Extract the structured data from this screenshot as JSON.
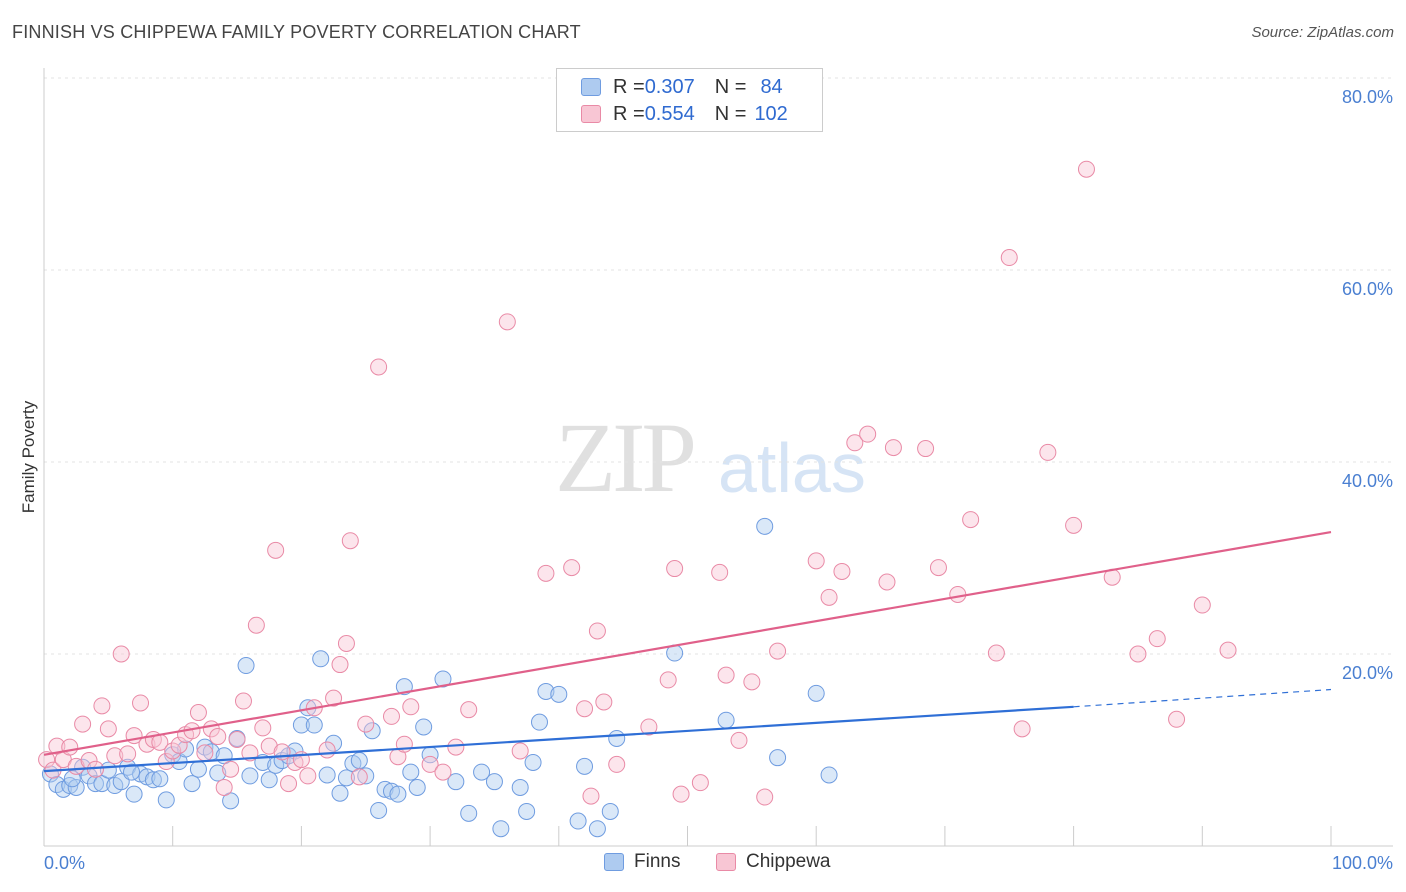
{
  "title": "FINNISH VS CHIPPEWA FAMILY POVERTY CORRELATION CHART",
  "source": "Source: ZipAtlas.com",
  "watermark": {
    "zip": "ZIP",
    "atlas": "atlas"
  },
  "legend": {
    "rows": [
      {
        "r_label": "R = ",
        "r_value": "0.307",
        "n_label": "N = ",
        "n_value": "84",
        "color": "#aecbf0",
        "border": "#6f9ce0"
      },
      {
        "r_label": "R = ",
        "r_value": "0.554",
        "n_label": "N = ",
        "n_value": "102",
        "color": "#f8c6d4",
        "border": "#e98aa6"
      }
    ],
    "bottom": [
      {
        "label": "Finns",
        "color": "#aecbf0",
        "border": "#6f9ce0"
      },
      {
        "label": "Chippewa",
        "color": "#f8c6d4",
        "border": "#e98aa6"
      }
    ]
  },
  "chart_data": {
    "type": "scatter",
    "title": "FINNISH VS CHIPPEWA FAMILY POVERTY CORRELATION CHART",
    "xlabel": "",
    "ylabel": "Family Poverty",
    "xlim": [
      0,
      100
    ],
    "ylim": [
      0,
      80
    ],
    "x_tick_labels": [
      "0.0%",
      "100.0%"
    ],
    "y_tick_labels": [
      "20.0%",
      "40.0%",
      "60.0%",
      "80.0%"
    ],
    "y_ticks": [
      20,
      40,
      60,
      80
    ],
    "grid": true,
    "legend_position": "top-center",
    "series": [
      {
        "name": "Finns",
        "color": "#6f9ce0",
        "fill": "rgba(174,203,240,0.45)",
        "trend": {
          "x0": 0,
          "y0": 7.8,
          "x1": 80,
          "y1": 14.5,
          "dash_x1": 100,
          "dash_y1": 16.3,
          "color": "#2f6fd6"
        },
        "points": [
          [
            0.5,
            7.5
          ],
          [
            1.0,
            6.4
          ],
          [
            1.5,
            5.9
          ],
          [
            2.0,
            6.3
          ],
          [
            2.5,
            6.1
          ],
          [
            3.0,
            8.2
          ],
          [
            3.5,
            7.3
          ],
          [
            4.0,
            6.5
          ],
          [
            4.5,
            6.5
          ],
          [
            5.0,
            7.9
          ],
          [
            5.5,
            6.3
          ],
          [
            6.0,
            6.7
          ],
          [
            6.5,
            8.2
          ],
          [
            7.0,
            5.4
          ],
          [
            7.5,
            7.5
          ],
          [
            8.0,
            7.2
          ],
          [
            8.5,
            6.9
          ],
          [
            9.0,
            7.0
          ],
          [
            9.5,
            4.8
          ],
          [
            10.0,
            9.5
          ],
          [
            10.5,
            8.8
          ],
          [
            11.0,
            10.1
          ],
          [
            11.5,
            6.5
          ],
          [
            12.0,
            8.0
          ],
          [
            12.5,
            10.3
          ],
          [
            13.0,
            9.8
          ],
          [
            13.5,
            7.6
          ],
          [
            14.0,
            9.4
          ],
          [
            14.5,
            4.7
          ],
          [
            15.0,
            11.2
          ],
          [
            15.7,
            18.8
          ],
          [
            16.0,
            7.3
          ],
          [
            17.0,
            8.7
          ],
          [
            17.5,
            6.9
          ],
          [
            18.0,
            8.4
          ],
          [
            18.5,
            8.9
          ],
          [
            19.0,
            9.4
          ],
          [
            19.5,
            9.9
          ],
          [
            20.0,
            12.6
          ],
          [
            20.5,
            14.4
          ],
          [
            21.0,
            12.6
          ],
          [
            21.5,
            19.5
          ],
          [
            22.0,
            7.4
          ],
          [
            22.5,
            10.7
          ],
          [
            23.0,
            5.5
          ],
          [
            23.5,
            7.1
          ],
          [
            24.0,
            8.6
          ],
          [
            24.5,
            8.9
          ],
          [
            25.0,
            7.3
          ],
          [
            25.5,
            12.0
          ],
          [
            26.0,
            3.7
          ],
          [
            26.5,
            5.9
          ],
          [
            27.0,
            5.7
          ],
          [
            27.5,
            5.4
          ],
          [
            28.0,
            16.6
          ],
          [
            28.5,
            7.7
          ],
          [
            29.0,
            6.1
          ],
          [
            29.5,
            12.4
          ],
          [
            30.0,
            9.5
          ],
          [
            31.0,
            17.4
          ],
          [
            32.0,
            6.7
          ],
          [
            33.0,
            3.4
          ],
          [
            34.0,
            7.7
          ],
          [
            35.0,
            6.7
          ],
          [
            35.5,
            1.8
          ],
          [
            37.0,
            6.1
          ],
          [
            37.5,
            3.6
          ],
          [
            38.0,
            8.7
          ],
          [
            38.5,
            12.9
          ],
          [
            39.0,
            16.1
          ],
          [
            40.0,
            15.8
          ],
          [
            41.5,
            2.6
          ],
          [
            42.0,
            8.3
          ],
          [
            43.0,
            1.8
          ],
          [
            44.0,
            3.6
          ],
          [
            44.5,
            11.2
          ],
          [
            49.0,
            20.1
          ],
          [
            53.0,
            13.1
          ],
          [
            56.0,
            33.3
          ],
          [
            57.0,
            9.2
          ],
          [
            60.0,
            15.9
          ],
          [
            61.0,
            7.4
          ],
          [
            2.2,
            7.0
          ],
          [
            6.8,
            7.7
          ]
        ]
      },
      {
        "name": "Chippewa",
        "color": "#e98aa6",
        "fill": "rgba(248,198,212,0.45)",
        "trend": {
          "x0": 0,
          "y0": 9.5,
          "x1": 100,
          "y1": 32.7,
          "color": "#e0608a"
        },
        "points": [
          [
            0.2,
            9.0
          ],
          [
            0.7,
            7.9
          ],
          [
            1.0,
            10.4
          ],
          [
            1.5,
            9.0
          ],
          [
            2.0,
            10.3
          ],
          [
            2.5,
            8.3
          ],
          [
            3.0,
            12.7
          ],
          [
            3.5,
            8.9
          ],
          [
            4.0,
            8.0
          ],
          [
            4.5,
            14.6
          ],
          [
            5.0,
            12.2
          ],
          [
            5.5,
            9.4
          ],
          [
            6.0,
            20.0
          ],
          [
            6.5,
            9.6
          ],
          [
            7.0,
            11.5
          ],
          [
            7.5,
            14.9
          ],
          [
            8.0,
            10.6
          ],
          [
            8.5,
            11.1
          ],
          [
            9.0,
            10.8
          ],
          [
            9.5,
            8.8
          ],
          [
            10.0,
            9.9
          ],
          [
            10.5,
            10.5
          ],
          [
            11.0,
            11.6
          ],
          [
            11.5,
            12.0
          ],
          [
            12.0,
            13.9
          ],
          [
            12.5,
            9.7
          ],
          [
            13.0,
            12.2
          ],
          [
            13.5,
            11.4
          ],
          [
            14.0,
            6.1
          ],
          [
            14.5,
            8.0
          ],
          [
            15.0,
            11.1
          ],
          [
            15.5,
            15.1
          ],
          [
            16.0,
            9.7
          ],
          [
            16.5,
            23.0
          ],
          [
            17.0,
            12.3
          ],
          [
            17.5,
            10.4
          ],
          [
            18.0,
            30.8
          ],
          [
            18.5,
            9.8
          ],
          [
            19.0,
            6.5
          ],
          [
            19.5,
            8.7
          ],
          [
            20.0,
            9.0
          ],
          [
            20.5,
            7.3
          ],
          [
            21.0,
            14.4
          ],
          [
            22.0,
            10.0
          ],
          [
            22.5,
            15.4
          ],
          [
            23.0,
            18.9
          ],
          [
            23.5,
            21.1
          ],
          [
            23.8,
            31.8
          ],
          [
            24.5,
            7.2
          ],
          [
            25.0,
            12.7
          ],
          [
            26.0,
            49.9
          ],
          [
            27.0,
            13.5
          ],
          [
            27.5,
            9.3
          ],
          [
            28.0,
            10.6
          ],
          [
            28.5,
            14.5
          ],
          [
            30.0,
            8.5
          ],
          [
            31.0,
            7.7
          ],
          [
            32.0,
            10.3
          ],
          [
            33.0,
            14.2
          ],
          [
            36.0,
            54.6
          ],
          [
            37.0,
            9.9
          ],
          [
            39.0,
            28.4
          ],
          [
            41.0,
            29.0
          ],
          [
            42.0,
            14.3
          ],
          [
            42.5,
            5.2
          ],
          [
            43.0,
            22.4
          ],
          [
            43.5,
            15.0
          ],
          [
            44.5,
            8.5
          ],
          [
            47.0,
            12.4
          ],
          [
            48.5,
            17.3
          ],
          [
            49.0,
            28.9
          ],
          [
            49.5,
            5.4
          ],
          [
            51.0,
            6.6
          ],
          [
            52.5,
            28.5
          ],
          [
            53.0,
            17.8
          ],
          [
            54.0,
            11.0
          ],
          [
            55.0,
            17.1
          ],
          [
            56.0,
            5.1
          ],
          [
            57.0,
            20.3
          ],
          [
            60.0,
            29.7
          ],
          [
            61.0,
            25.9
          ],
          [
            62.0,
            28.6
          ],
          [
            63.0,
            42.0
          ],
          [
            64.0,
            42.9
          ],
          [
            65.5,
            27.5
          ],
          [
            66.0,
            41.5
          ],
          [
            68.5,
            41.4
          ],
          [
            69.5,
            29.0
          ],
          [
            71.0,
            26.2
          ],
          [
            72.0,
            34.0
          ],
          [
            74.0,
            20.1
          ],
          [
            75.0,
            61.3
          ],
          [
            76.0,
            12.2
          ],
          [
            78.0,
            41.0
          ],
          [
            80.0,
            33.4
          ],
          [
            81.0,
            70.5
          ],
          [
            83.0,
            28.0
          ],
          [
            85.0,
            20.0
          ],
          [
            86.5,
            21.6
          ],
          [
            88.0,
            13.2
          ],
          [
            90.0,
            25.1
          ],
          [
            92.0,
            20.4
          ]
        ]
      }
    ]
  }
}
